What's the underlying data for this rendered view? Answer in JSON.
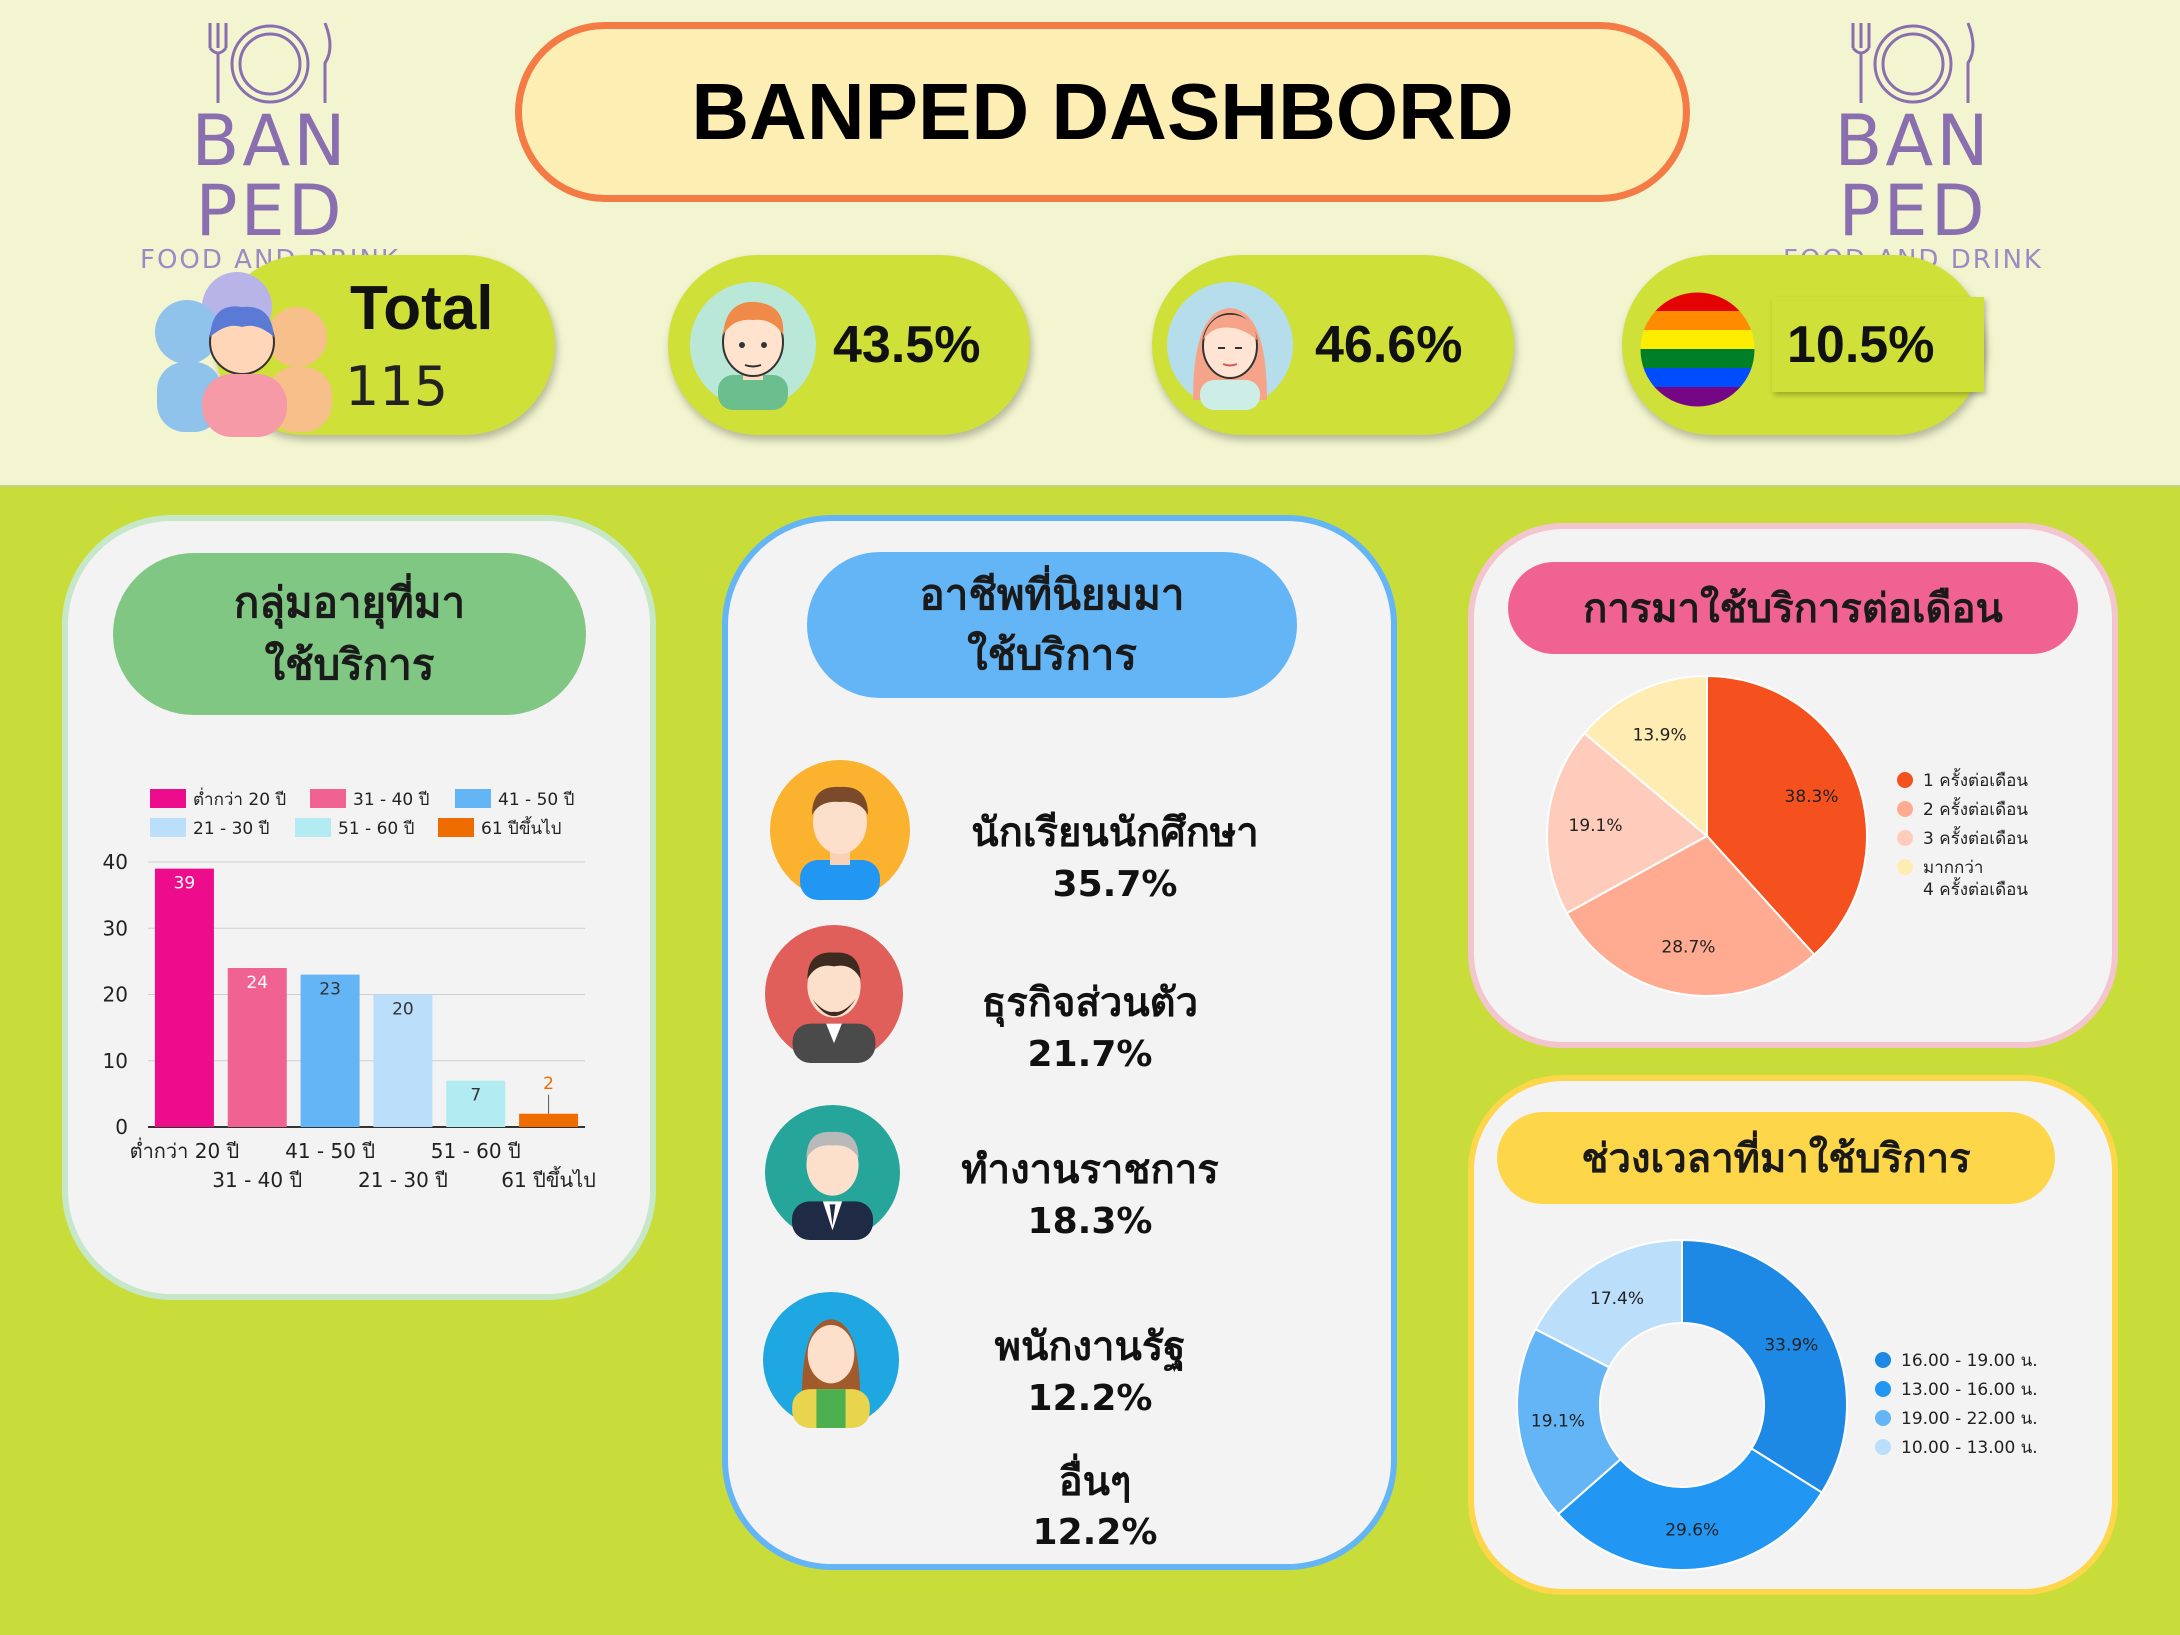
{
  "header": {
    "title": "BANPED DASHBORD",
    "logo": {
      "name": "BAN PED",
      "sub": "FOOD AND DRINK",
      "icon": "plate-cutlery-icon"
    }
  },
  "stats": {
    "total": {
      "label": "Total",
      "value": "115",
      "icon": "people-group-icon"
    },
    "male": {
      "value": "43.5%",
      "icon": "man-avatar-icon"
    },
    "female": {
      "value": "46.6%",
      "icon": "woman-avatar-icon"
    },
    "lgbt": {
      "value": "10.5%",
      "icon": "rainbow-flag-icon"
    }
  },
  "age_panel": {
    "heading_line1": "กลุ่มอายุที่มา",
    "heading_line2": "ใช้บริการ"
  },
  "occupation_panel": {
    "heading_line1": "อาชีพที่นิยมมา",
    "heading_line2": "ใช้บริการ",
    "items": [
      {
        "label": "นักเรียนนักศึกษา",
        "value": "35.7%",
        "icon": "student-avatar-icon"
      },
      {
        "label": "ธุรกิจส่วนตัว",
        "value": "21.7%",
        "icon": "businessman-avatar-icon"
      },
      {
        "label": "ทำงานราชการ",
        "value": "18.3%",
        "icon": "officer-avatar-icon"
      },
      {
        "label": "พนักงานรัฐ",
        "value": "12.2%",
        "icon": "employee-avatar-icon"
      },
      {
        "label": "อื่นๆ",
        "value": "12.2%"
      }
    ]
  },
  "visits_panel": {
    "heading": "การมาใช้บริการต่อเดือน"
  },
  "time_panel": {
    "heading": "ช่วงเวลาที่มาใช้บริการ"
  },
  "colors": {
    "age": [
      "#ec0c8c",
      "#f06292",
      "#64b5f6",
      "#bbdefb",
      "#b2ebf2",
      "#ef6c00"
    ],
    "visits": [
      "#f4511e",
      "#ffab91",
      "#ffccbc",
      "#ffecb3"
    ],
    "time": [
      "#1e88e5",
      "#2196f3",
      "#64b5f6",
      "#bbdefb"
    ]
  },
  "chart_data": [
    {
      "type": "bar",
      "categories": [
        "ต่ำกว่า 20 ปี",
        "31 - 40 ปี",
        "41 - 50 ปี",
        "21 - 30 ปี",
        "51 - 60 ปี",
        "61 ปีขึ้นไป"
      ],
      "values": [
        39,
        24,
        23,
        20,
        7,
        2
      ],
      "ylim": [
        0,
        40
      ],
      "yticks": [
        0,
        10,
        20,
        30,
        40
      ],
      "legend": "top",
      "grid": true
    },
    {
      "type": "pie",
      "labels": [
        "1 ครั้งต่อเดือน",
        "2 ครั้งต่อเดือน",
        "3 ครั้งต่อเดือน",
        "มากกว่า 4 ครั้งต่อเดือน"
      ],
      "values": [
        38.3,
        28.7,
        19.1,
        13.9
      ],
      "value_labels": [
        "38.3%",
        "28.7%",
        "19.1%",
        "13.9%"
      ],
      "legend": "right"
    },
    {
      "type": "pie",
      "donut": true,
      "labels": [
        "16.00 - 19.00 น.",
        "13.00 - 16.00 น.",
        "19.00 - 22.00 น.",
        "10.00 - 13.00 น."
      ],
      "values": [
        33.9,
        29.6,
        19.1,
        17.4
      ],
      "value_labels": [
        "33.9%",
        "29.6%",
        "19.1%",
        "17.4%"
      ],
      "legend": "right"
    }
  ]
}
